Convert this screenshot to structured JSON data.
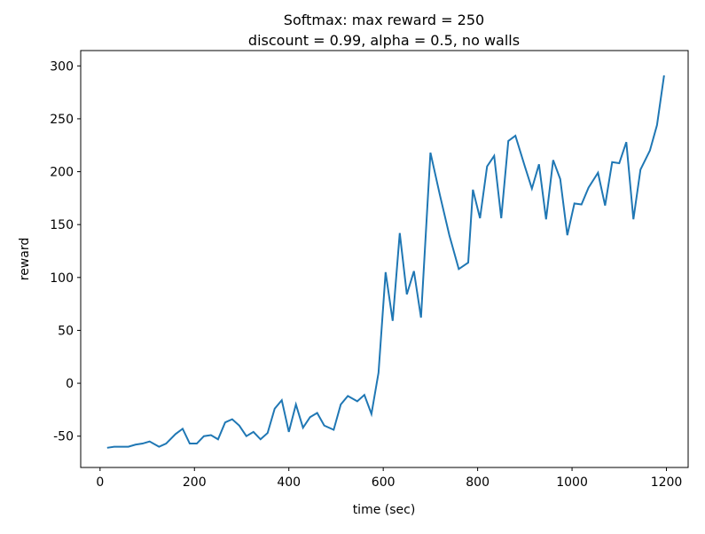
{
  "chart_data": {
    "type": "line",
    "title": "Softmax: max reward = 250",
    "subtitle": "discount = 0.99, alpha = 0.5, no walls",
    "x_label": "time (sec)",
    "y_label": "reward",
    "x": [
      15,
      30,
      45,
      60,
      75,
      90,
      105,
      125,
      140,
      160,
      175,
      190,
      205,
      220,
      235,
      250,
      265,
      280,
      295,
      310,
      325,
      340,
      355,
      370,
      385,
      400,
      415,
      430,
      445,
      460,
      475,
      495,
      510,
      525,
      545,
      560,
      575,
      590,
      605,
      620,
      635,
      650,
      665,
      680,
      700,
      720,
      740,
      760,
      780,
      790,
      805,
      820,
      835,
      850,
      865,
      880,
      900,
      915,
      930,
      945,
      960,
      975,
      990,
      1005,
      1020,
      1035,
      1055,
      1070,
      1085,
      1100,
      1115,
      1130,
      1145,
      1165,
      1180,
      1195
    ],
    "series": [
      {
        "name": "reward",
        "color": "#1f77b4",
        "values": [
          -61,
          -60,
          -60,
          -60,
          -58,
          -57,
          -55,
          -60,
          -57,
          -48,
          -43,
          -57,
          -57,
          -50,
          -49,
          -53,
          -37,
          -34,
          -40,
          -50,
          -46,
          -53,
          -47,
          -24,
          -16,
          -46,
          -20,
          -42,
          -32,
          -28,
          -40,
          -44,
          -20,
          -12,
          -17,
          -11,
          -29,
          10,
          105,
          59,
          142,
          84,
          106,
          62,
          218,
          178,
          140,
          108,
          114,
          183,
          156,
          205,
          215,
          156,
          229,
          234,
          205,
          184,
          207,
          155,
          211,
          193,
          140,
          170,
          169,
          185,
          199,
          168,
          209,
          208,
          228,
          155,
          202,
          220,
          244,
          291
        ]
      }
    ],
    "xlim": [
      -41,
      1246
    ],
    "ylim": [
      -79.6,
      314.5
    ],
    "xticks": [
      0,
      200,
      400,
      600,
      800,
      1000,
      1200
    ],
    "yticks": [
      -50,
      0,
      50,
      100,
      150,
      200,
      250,
      300
    ]
  }
}
